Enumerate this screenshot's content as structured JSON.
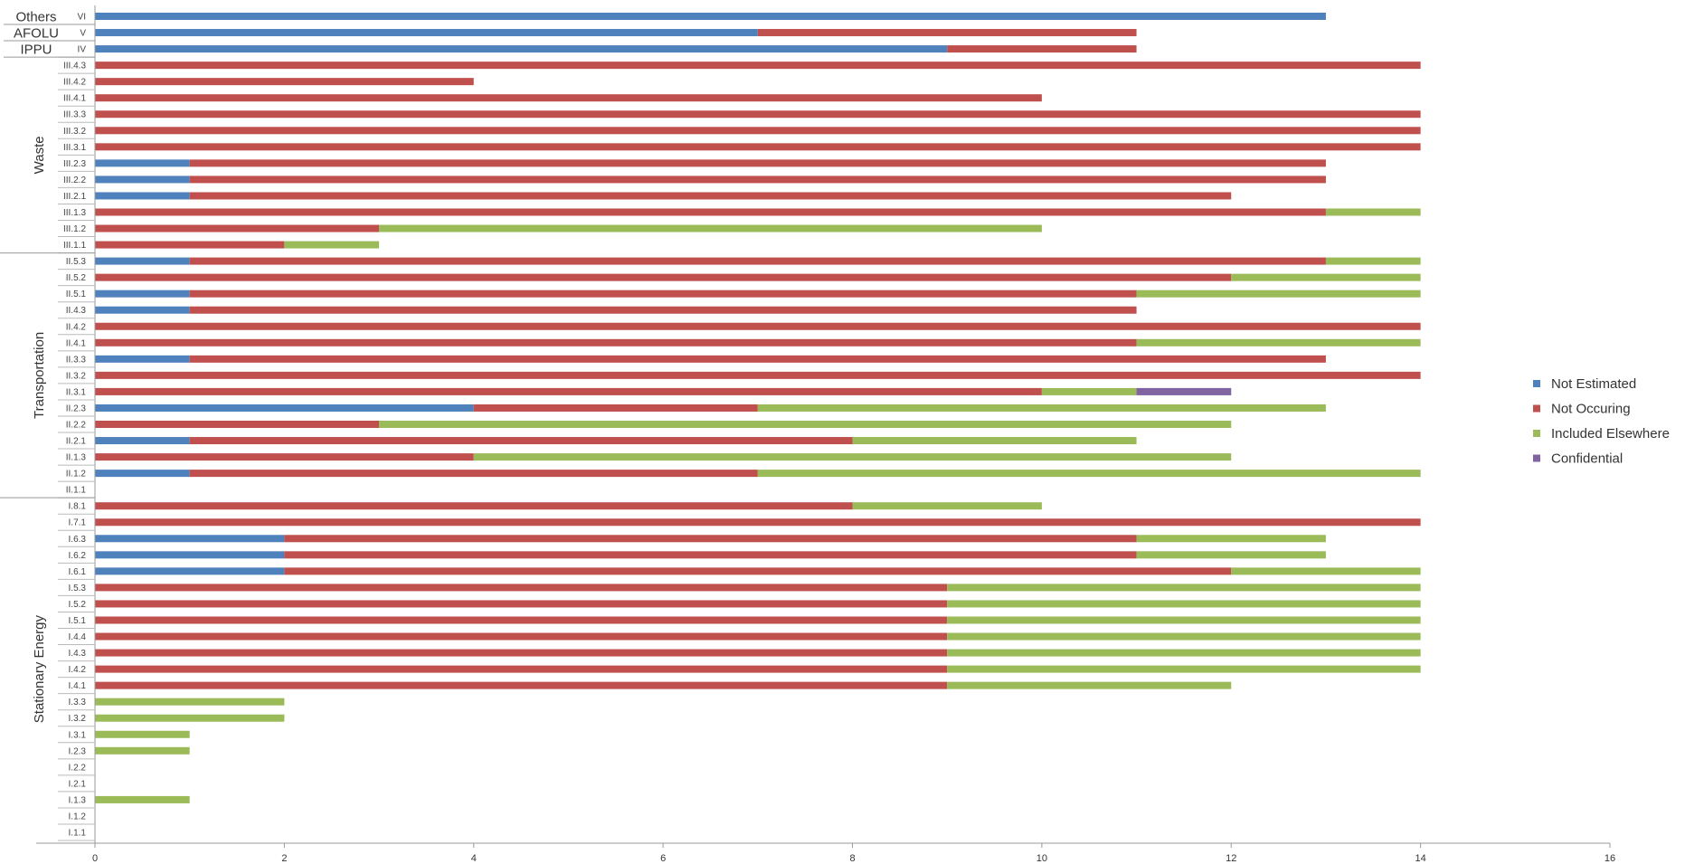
{
  "chart_data": {
    "type": "bar",
    "orientation": "horizontal",
    "stacked": true,
    "xlim": [
      0,
      16
    ],
    "xticks": [
      0,
      2,
      4,
      6,
      8,
      10,
      12,
      14,
      16
    ],
    "grid": false,
    "legend_position": "right",
    "categories": [
      "VI",
      "V",
      "IV",
      "III.4.3",
      "III.4.2",
      "III.4.1",
      "III.3.3",
      "III.3.2",
      "III.3.1",
      "III.2.3",
      "III.2.2",
      "III.2.1",
      "III.1.3",
      "III.1.2",
      "III.1.1",
      "II.5.3",
      "II.5.2",
      "II.5.1",
      "II.4.3",
      "II.4.2",
      "II.4.1",
      "II.3.3",
      "II.3.2",
      "II.3.1",
      "II.2.3",
      "II.2.2",
      "II.2.1",
      "II.1.3",
      "II.1.2",
      "II.1.1",
      "I.8.1",
      "I.7.1",
      "I.6.3",
      "I.6.2",
      "I.6.1",
      "I.5.3",
      "I.5.2",
      "I.5.1",
      "I.4.4",
      "I.4.3",
      "I.4.2",
      "I.4.1",
      "I.3.3",
      "I.3.2",
      "I.3.1",
      "I.2.3",
      "I.2.2",
      "I.2.1",
      "I.1.3",
      "I.1.2",
      "I.1.1"
    ],
    "groups": [
      {
        "label": "Others",
        "start": 0,
        "end": 0,
        "orientation": "horizontal"
      },
      {
        "label": "AFOLU",
        "start": 1,
        "end": 1,
        "orientation": "horizontal"
      },
      {
        "label": "IPPU",
        "start": 2,
        "end": 2,
        "orientation": "horizontal"
      },
      {
        "label": "Waste",
        "start": 3,
        "end": 14,
        "orientation": "vertical"
      },
      {
        "label": "Transportation",
        "start": 15,
        "end": 29,
        "orientation": "vertical"
      },
      {
        "label": "Stationary Energy",
        "start": 30,
        "end": 50,
        "orientation": "vertical"
      }
    ],
    "series": [
      {
        "name": "Not Estimated",
        "color": "#4f81bd",
        "values": [
          13,
          7,
          9,
          0,
          0,
          0,
          0,
          0,
          0,
          1,
          1,
          1,
          0,
          0,
          0,
          1,
          0,
          1,
          1,
          0,
          0,
          1,
          0,
          0,
          4,
          0,
          1,
          0,
          1,
          0,
          0,
          0,
          2,
          2,
          2,
          0,
          0,
          0,
          0,
          0,
          0,
          0,
          0,
          0,
          0,
          0,
          0,
          0,
          0,
          0,
          0
        ]
      },
      {
        "name": "Not Occuring",
        "color": "#c0504d",
        "values": [
          0,
          4,
          2,
          14,
          4,
          10,
          14,
          14,
          14,
          12,
          12,
          11,
          13,
          3,
          2,
          12,
          12,
          10,
          10,
          14,
          11,
          12,
          14,
          10,
          3,
          3,
          7,
          4,
          6,
          0,
          8,
          14,
          9,
          9,
          10,
          9,
          9,
          9,
          9,
          9,
          9,
          9,
          0,
          0,
          0,
          0,
          0,
          0,
          0,
          0,
          0
        ]
      },
      {
        "name": "Included Elsewhere",
        "color": "#9bbb59",
        "values": [
          0,
          0,
          0,
          0,
          0,
          0,
          0,
          0,
          0,
          0,
          0,
          0,
          1,
          7,
          1,
          1,
          2,
          3,
          0,
          0,
          3,
          0,
          0,
          1,
          6,
          9,
          3,
          8,
          7,
          0,
          2,
          0,
          2,
          2,
          2,
          5,
          5,
          5,
          5,
          5,
          5,
          3,
          2,
          2,
          1,
          1,
          0,
          0,
          1,
          0,
          0
        ]
      },
      {
        "name": "Confidential",
        "color": "#8064a2",
        "values": [
          0,
          0,
          0,
          0,
          0,
          0,
          0,
          0,
          0,
          0,
          0,
          0,
          0,
          0,
          0,
          0,
          0,
          0,
          0,
          0,
          0,
          0,
          0,
          1,
          0,
          0,
          0,
          0,
          0,
          0,
          0,
          0,
          0,
          0,
          0,
          0,
          0,
          0,
          0,
          0,
          0,
          0,
          0,
          0,
          0,
          0,
          0,
          0,
          0,
          0,
          0
        ]
      }
    ]
  }
}
